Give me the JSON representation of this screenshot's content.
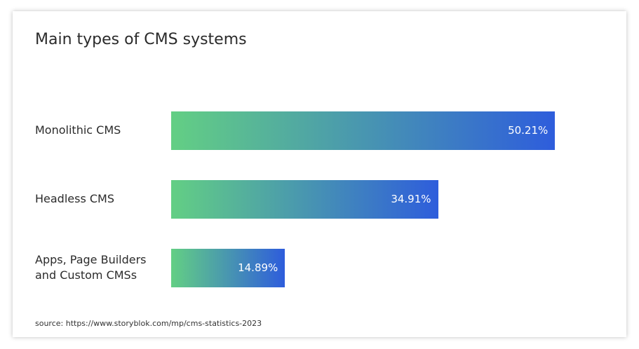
{
  "chart_data": {
    "type": "bar",
    "orientation": "horizontal",
    "title": "Main types of CMS systems",
    "categories": [
      "Monolithic CMS",
      "Headless CMS",
      "Apps, Page Builders and Custom CMSs"
    ],
    "values": [
      50.21,
      34.91,
      14.89
    ],
    "value_labels": [
      "50.21%",
      "34.91%",
      "14.89%"
    ],
    "gradient": [
      "#63cf84",
      "#2e5ddc"
    ],
    "source": "source: https://www.storyblok.com/mp/cms-statistics-2023"
  }
}
